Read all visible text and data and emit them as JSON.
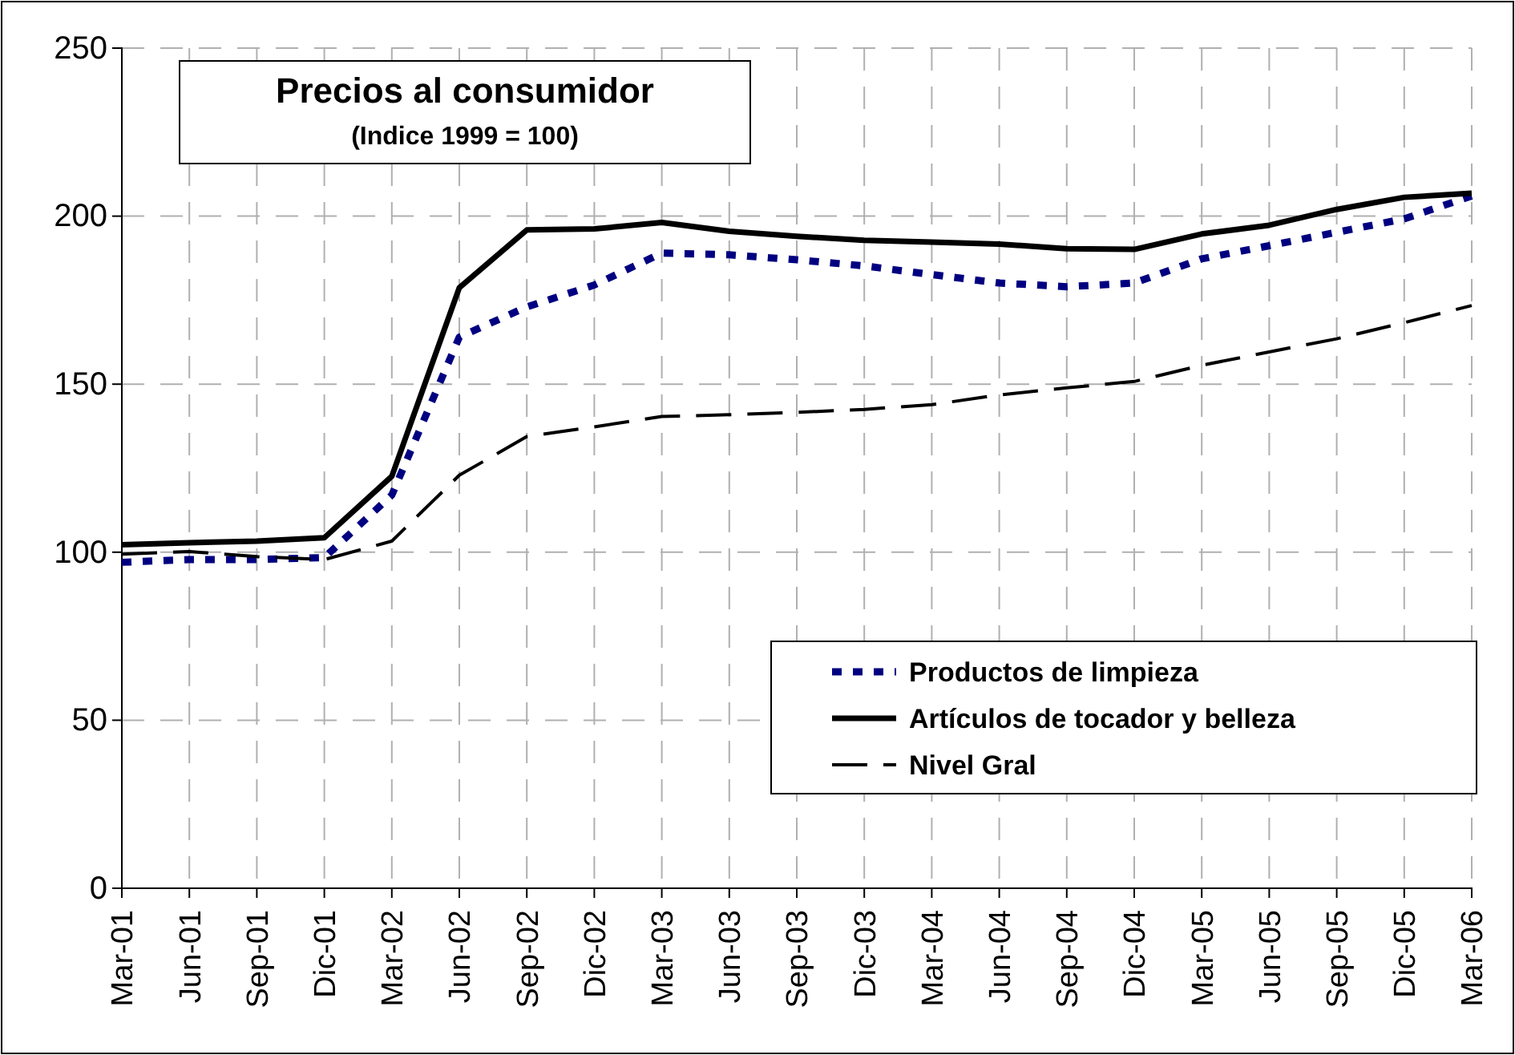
{
  "chart_data": {
    "type": "line",
    "title": "Precios al consumidor",
    "subtitle": "(Indice 1999 = 100)",
    "categories": [
      "Mar-01",
      "Jun-01",
      "Sep-01",
      "Dic-01",
      "Mar-02",
      "Jun-02",
      "Sep-02",
      "Dic-02",
      "Mar-03",
      "Jun-03",
      "Sep-03",
      "Dic-03",
      "Mar-04",
      "Jun-04",
      "Sep-04",
      "Dic-04",
      "Mar-05",
      "Jun-05",
      "Sep-05",
      "Dic-05",
      "Mar-06"
    ],
    "series": [
      {
        "name": "Productos de limpieza",
        "color": "#000080",
        "line_style": "dotted",
        "values": [
          97,
          97.8,
          97.8,
          98.4,
          117,
          164,
          173,
          179.5,
          189,
          188.5,
          187,
          185.2,
          182.6,
          180.1,
          179,
          180.1,
          187.3,
          191.2,
          195.2,
          199.2,
          206
        ]
      },
      {
        "name": "Artículos de tocador y belleza",
        "color": "#000000",
        "line_style": "solid",
        "values": [
          102.2,
          102.8,
          103.3,
          104.3,
          122.6,
          178.7,
          195.9,
          196.2,
          198.1,
          195.5,
          194,
          192.8,
          192.3,
          191.7,
          190.3,
          190.1,
          194.7,
          197.3,
          202,
          205.6,
          206.8
        ]
      },
      {
        "name": "Nivel Gral",
        "color": "#000000",
        "line_style": "dashed",
        "values": [
          99.4,
          100.2,
          98.7,
          97.8,
          103.3,
          122.9,
          134.4,
          137.3,
          140.4,
          140.9,
          141.6,
          142.5,
          143.9,
          146.8,
          148.9,
          150.8,
          155.6,
          159.6,
          163.5,
          168.3,
          173.4
        ]
      }
    ],
    "ylim": [
      0,
      250
    ],
    "yticks": [
      0,
      50,
      100,
      150,
      200,
      250
    ],
    "grid": true,
    "legend": "bottom right",
    "marker": "none"
  }
}
